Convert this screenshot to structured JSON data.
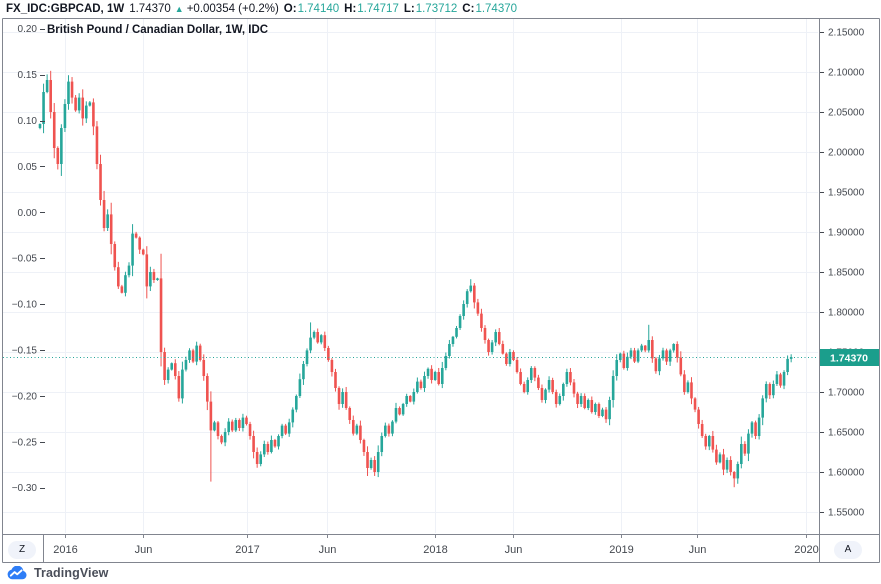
{
  "header": {
    "symbol": "FX_IDC:GBPCAD, 1W",
    "last_price": "1.74370",
    "direction_icon": "up-triangle",
    "change": "+0.00354 (+0.2%)",
    "ohlc": [
      {
        "label": "O:",
        "value": "1.74140"
      },
      {
        "label": "H:",
        "value": "1.74717"
      },
      {
        "label": "L:",
        "value": "1.73712"
      },
      {
        "label": "C:",
        "value": "1.74370"
      }
    ]
  },
  "chart_data": {
    "type": "candlestick",
    "symbol": "FX_IDC:GBPCAD",
    "timeframe": "1W",
    "title": "British Pound / Canadian Dollar, 1W, IDC",
    "up_color": "#26a69a",
    "down_color": "#ef5350",
    "grid": true,
    "right_axis": {
      "min": 1.55,
      "max": 2.15,
      "step": 0.05,
      "labels": [
        "2.15000",
        "2.10000",
        "2.05000",
        "2.00000",
        "1.95000",
        "1.90000",
        "1.85000",
        "1.80000",
        "1.75000",
        "1.70000",
        "1.65000",
        "1.60000",
        "1.55000"
      ]
    },
    "left_axis": {
      "min": -0.3,
      "max": 0.2,
      "step": 0.05,
      "labels": [
        "0.20",
        "0.15",
        "0.10",
        "0.05",
        "0.00",
        "−0.05",
        "−0.10",
        "−0.15",
        "−0.20",
        "−0.25",
        "−0.30"
      ]
    },
    "x_ticks": [
      {
        "label": "2016",
        "week": 7.0
      },
      {
        "label": "Jun",
        "week": 28.9
      },
      {
        "label": "2017",
        "week": 58.1
      },
      {
        "label": "Jun",
        "week": 80.6
      },
      {
        "label": "2018",
        "week": 110.9
      },
      {
        "label": "Jun",
        "week": 132.8
      },
      {
        "label": "2019",
        "week": 163.2
      },
      {
        "label": "Jun",
        "week": 184.5
      },
      {
        "label": "2020",
        "week": 215.1
      }
    ],
    "price_line": {
      "value": 1.7437,
      "label": "1.74370",
      "color": "#26a69a"
    },
    "first_open": 2.03,
    "weekly_closes": [
      2.035,
      2.075,
      2.09,
      2.05,
      2.005,
      1.985,
      2.03,
      2.06,
      2.088,
      2.068,
      2.052,
      2.068,
      2.042,
      2.058,
      2.062,
      2.032,
      1.985,
      1.94,
      1.905,
      1.922,
      1.885,
      1.856,
      1.832,
      1.824,
      1.846,
      1.858,
      1.898,
      1.893,
      1.878,
      1.872,
      1.832,
      1.85,
      1.84,
      1.842,
      1.75,
      1.715,
      1.728,
      1.736,
      1.72,
      1.692,
      1.728,
      1.74,
      1.752,
      1.738,
      1.758,
      1.74,
      1.72,
      1.688,
      1.652,
      1.662,
      1.645,
      1.637,
      1.65,
      1.663,
      1.652,
      1.665,
      1.655,
      1.668,
      1.66,
      1.645,
      1.625,
      1.61,
      1.622,
      1.635,
      1.625,
      1.64,
      1.632,
      1.645,
      1.658,
      1.648,
      1.662,
      1.678,
      1.695,
      1.716,
      1.735,
      1.752,
      1.768,
      1.775,
      1.762,
      1.771,
      1.755,
      1.74,
      1.725,
      1.705,
      1.685,
      1.7,
      1.68,
      1.665,
      1.648,
      1.658,
      1.64,
      1.625,
      1.605,
      1.615,
      1.6,
      1.625,
      1.645,
      1.658,
      1.648,
      1.663,
      1.68,
      1.672,
      1.685,
      1.695,
      1.688,
      1.7,
      1.713,
      1.705,
      1.72,
      1.729,
      1.715,
      1.725,
      1.71,
      1.73,
      1.745,
      1.76,
      1.769,
      1.78,
      1.795,
      1.81,
      1.826,
      1.833,
      1.812,
      1.798,
      1.78,
      1.765,
      1.75,
      1.762,
      1.775,
      1.76,
      1.748,
      1.735,
      1.75,
      1.74,
      1.725,
      1.71,
      1.7,
      1.715,
      1.73,
      1.718,
      1.705,
      1.69,
      1.703,
      1.715,
      1.7,
      1.685,
      1.695,
      1.71,
      1.725,
      1.712,
      1.698,
      1.685,
      1.695,
      1.68,
      1.69,
      1.675,
      1.685,
      1.67,
      1.678,
      1.666,
      1.69,
      1.72,
      1.74,
      1.748,
      1.73,
      1.744,
      1.752,
      1.738,
      1.752,
      1.758,
      1.752,
      1.765,
      1.742,
      1.726,
      1.742,
      1.752,
      1.738,
      1.752,
      1.76,
      1.743,
      1.722,
      1.7,
      1.712,
      1.692,
      1.678,
      1.66,
      1.645,
      1.632,
      1.645,
      1.628,
      1.612,
      1.622,
      1.603,
      1.615,
      1.6,
      1.592,
      1.61,
      1.635,
      1.623,
      1.648,
      1.662,
      1.645,
      1.668,
      1.692,
      1.71,
      1.696,
      1.71,
      1.722,
      1.708,
      1.725,
      1.7414,
      1.7437
    ],
    "wick_highs": {
      "2": 2.097,
      "8": 2.096,
      "76": 1.787,
      "121": 1.841,
      "171": 1.784,
      "211": 1.74717
    },
    "wick_lows": {
      "34": 1.732,
      "48": 1.588,
      "92": 1.595,
      "94": 1.595,
      "195": 1.581,
      "211": 1.73712
    }
  },
  "footer": {
    "zoom_button": "Z",
    "autoscale_button": "A",
    "logo_text": "TradingView"
  }
}
